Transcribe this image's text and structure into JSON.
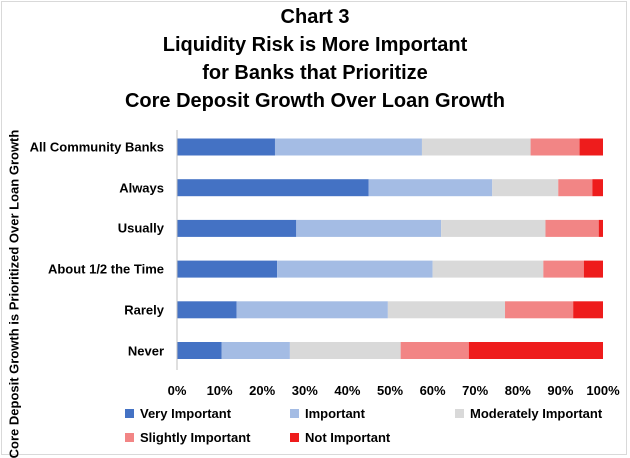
{
  "chart_data": {
    "type": "bar",
    "orientation": "horizontal",
    "stacked": "100%",
    "title_lines": [
      "Chart 3",
      "Liquidity Risk is More Important",
      "for Banks that Prioritize",
      "Core Deposit Growth Over Loan Growth"
    ],
    "ylabel": "Core Deposit Growth is Prioritized Over Loan Growth",
    "xlabel": "",
    "xlim": [
      0,
      100
    ],
    "x_ticks": [
      "0%",
      "10%",
      "20%",
      "30%",
      "40%",
      "50%",
      "60%",
      "70%",
      "80%",
      "90%",
      "100%"
    ],
    "grid": false,
    "legend_position": "bottom",
    "categories": [
      "All Community Banks",
      "Always",
      "Usually",
      "About 1/2 the Time",
      "Rarely",
      "Never"
    ],
    "series": [
      {
        "name": "Very Important",
        "color": "#4472c4",
        "values": [
          23,
          45,
          28,
          23.5,
          14,
          10.5
        ]
      },
      {
        "name": "Important",
        "color": "#a4bce4",
        "values": [
          34.5,
          29,
          34,
          36.5,
          35.5,
          16
        ]
      },
      {
        "name": "Moderately Important",
        "color": "#d9d9d9",
        "values": [
          25.5,
          15.5,
          24.5,
          26,
          27.5,
          26
        ]
      },
      {
        "name": "Slightly Important",
        "color": "#f28585",
        "values": [
          11.5,
          8,
          12.5,
          9.5,
          16,
          16
        ]
      },
      {
        "name": "Not Important",
        "color": "#ee1c1c",
        "values": [
          5.5,
          2.5,
          1,
          4.5,
          7,
          31.5
        ]
      }
    ]
  }
}
